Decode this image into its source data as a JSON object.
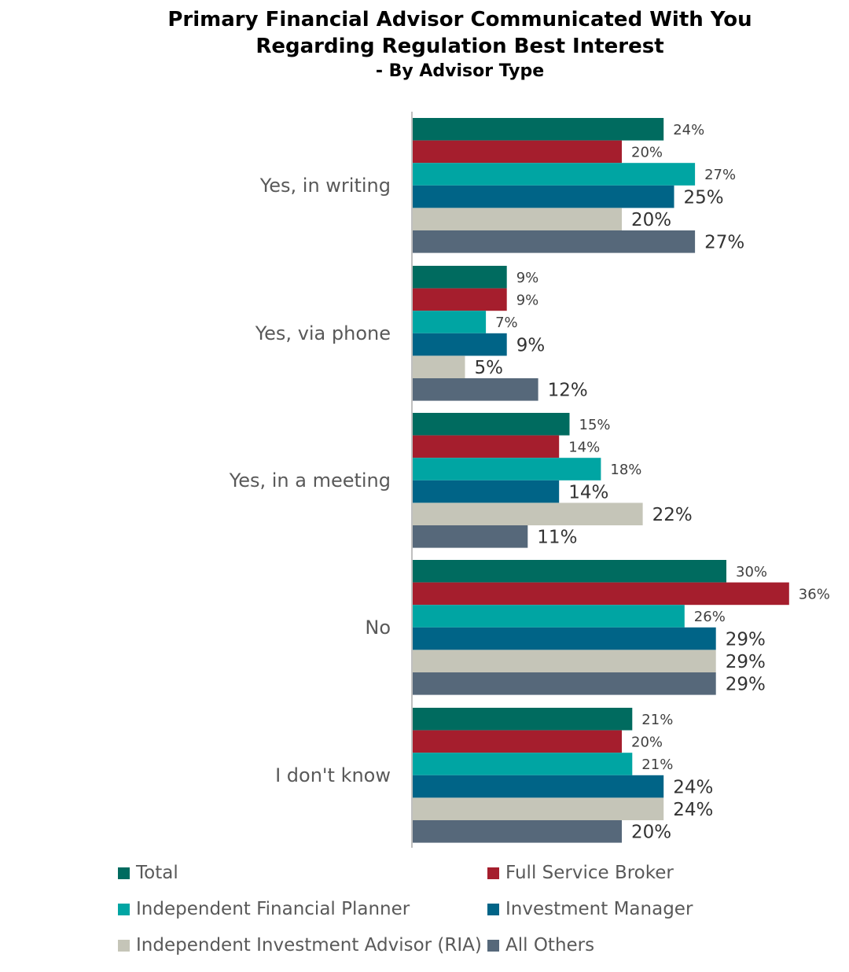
{
  "title_line1": "Primary Financial Advisor Communicated With You",
  "title_line2": "Regarding Regulation Best Interest",
  "subtitle": "- By Advisor Type",
  "chart_data": {
    "type": "bar",
    "orientation": "horizontal",
    "title": "Primary Financial Advisor Communicated With You Regarding Regulation Best Interest",
    "subtitle": "- By Advisor Type",
    "categories": [
      "Yes, in writing",
      "Yes, via phone",
      "Yes, in a meeting",
      "No",
      "I don't know"
    ],
    "value_format": "percent",
    "xlim": [
      0,
      36
    ],
    "grid": false,
    "legend_position": "bottom",
    "series": [
      {
        "name": "Total",
        "color": "#006b5f",
        "values": [
          24,
          9,
          15,
          30,
          21
        ]
      },
      {
        "name": "Full Service Broker",
        "color": "#a51e2d",
        "values": [
          20,
          9,
          14,
          36,
          20
        ]
      },
      {
        "name": "Independent Financial Planner",
        "color": "#00a5a3",
        "values": [
          27,
          7,
          18,
          26,
          21
        ]
      },
      {
        "name": "Investment Manager",
        "color": "#006487",
        "values": [
          25,
          9,
          14,
          29,
          24
        ]
      },
      {
        "name": "Independent Investment Advisor (RIA)",
        "color": "#c5c5b8",
        "values": [
          20,
          5,
          22,
          29,
          24
        ]
      },
      {
        "name": "All Others",
        "color": "#56687a",
        "values": [
          27,
          12,
          11,
          29,
          20
        ]
      }
    ],
    "data_labels": [
      [
        "24%",
        "9%",
        "15%",
        "30%",
        "21%"
      ],
      [
        "20%",
        "9%",
        "14%",
        "36%",
        "20%"
      ],
      [
        "27%",
        "7%",
        "18%",
        "26%",
        "21%"
      ],
      [
        "25%",
        "9%",
        "14%",
        "29%",
        "24%"
      ],
      [
        "20%",
        "5%",
        "22%",
        "29%",
        "24%"
      ],
      [
        "27%",
        "12%",
        "11%",
        "29%",
        "20%"
      ]
    ]
  }
}
